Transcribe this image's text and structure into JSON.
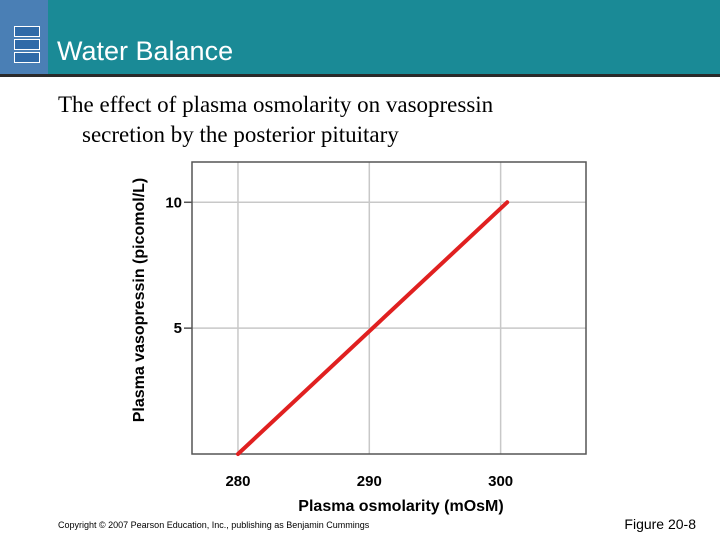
{
  "slide": {
    "title": "Water Balance",
    "subtitle_line1": "The effect of plasma osmolarity on vasopressin",
    "subtitle_line2": "secretion by the posterior pituitary"
  },
  "footer": {
    "copyright": "Copyright © 2007 Pearson Education, Inc., publishing as Benjamin Cummings",
    "figure_label": "Figure 20-8"
  },
  "colors": {
    "header": "#1a8a96",
    "line": "#e02020"
  },
  "chart_data": {
    "type": "line",
    "title": "",
    "xlabel": "Plasma osmolarity (mOsM)",
    "ylabel": "Plasma vasopressin (picomol/L)",
    "xlim": [
      276.5,
      306.5
    ],
    "ylim": [
      0,
      11.6
    ],
    "xticks": [
      280,
      290,
      300
    ],
    "yticks": [
      5,
      10
    ],
    "grid": true,
    "series": [
      {
        "x": [
          280,
          300.5
        ],
        "y": [
          0,
          10
        ]
      }
    ]
  }
}
